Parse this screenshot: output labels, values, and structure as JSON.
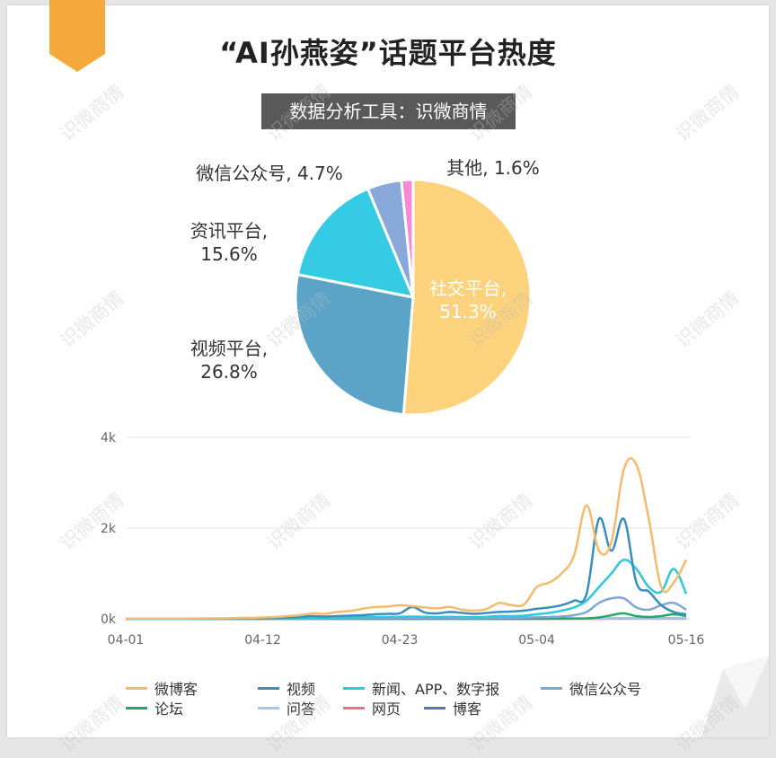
{
  "header": {
    "title": "“AI孙燕姿”话题平台热度",
    "subtitle": "数据分析工具：识微商情"
  },
  "watermark": "识微商情",
  "colors": {
    "ribbon": "#f5a93a",
    "background": "#ffffff"
  },
  "chart_data": [
    {
      "type": "pie",
      "slices": [
        {
          "name": "社交平台",
          "value": 51.3,
          "color": "#fdd27c",
          "label_line1": "社交平台,",
          "label_line2": "51.3%"
        },
        {
          "name": "视频平台",
          "value": 26.8,
          "color": "#5ba4c8",
          "label_line1": "视频平台,",
          "label_line2": "26.8%"
        },
        {
          "name": "资讯平台",
          "value": 15.6,
          "color": "#35cbe4",
          "label_line1": "资讯平台,",
          "label_line2": "15.6%"
        },
        {
          "name": "微信公众号",
          "value": 4.7,
          "color": "#87a8d8",
          "label_line1": "微信公众号, 4.7%",
          "label_line2": ""
        },
        {
          "name": "其他",
          "value": 1.6,
          "color": "#f589d5",
          "label_line1": "其他, 1.6%",
          "label_line2": ""
        }
      ]
    },
    {
      "type": "line",
      "y_ticks": [
        0,
        2000,
        4000
      ],
      "y_tick_labels": [
        "0k",
        "2k",
        "4k"
      ],
      "ylim": [
        0,
        4000
      ],
      "grid": true,
      "legend_position": "bottom",
      "x_tick_labels": [
        "04-01",
        "04-12",
        "04-23",
        "05-04",
        "05-16"
      ],
      "x_start": "2023-04-01",
      "x": [
        "04-01",
        "04-02",
        "04-03",
        "04-04",
        "04-05",
        "04-06",
        "04-07",
        "04-08",
        "04-09",
        "04-10",
        "04-11",
        "04-12",
        "04-13",
        "04-14",
        "04-15",
        "04-16",
        "04-17",
        "04-18",
        "04-19",
        "04-20",
        "04-21",
        "04-22",
        "04-23",
        "04-24",
        "04-25",
        "04-26",
        "04-27",
        "04-28",
        "04-29",
        "04-30",
        "05-01",
        "05-02",
        "05-03",
        "05-04",
        "05-05",
        "05-06",
        "05-07",
        "05-08",
        "05-09",
        "05-10",
        "05-11",
        "05-12",
        "05-13",
        "05-14",
        "05-15",
        "05-16"
      ],
      "series": [
        {
          "name": "微博客",
          "color": "#f4bb6e",
          "values": [
            5,
            5,
            5,
            5,
            5,
            5,
            8,
            10,
            12,
            18,
            20,
            30,
            40,
            60,
            80,
            120,
            110,
            150,
            170,
            220,
            260,
            270,
            300,
            280,
            250,
            230,
            260,
            200,
            180,
            220,
            350,
            300,
            320,
            700,
            800,
            1000,
            1400,
            2500,
            1500,
            1700,
            3300,
            3400,
            2200,
            700,
            800,
            1300
          ]
        },
        {
          "name": "视频",
          "color": "#3b8dbc",
          "values": [
            5,
            5,
            5,
            5,
            5,
            5,
            5,
            5,
            5,
            8,
            10,
            15,
            20,
            30,
            40,
            60,
            50,
            60,
            70,
            80,
            100,
            110,
            120,
            260,
            140,
            120,
            150,
            130,
            110,
            130,
            150,
            160,
            180,
            220,
            250,
            300,
            400,
            550,
            2200,
            1500,
            2200,
            800,
            600,
            300,
            150,
            100
          ]
        },
        {
          "name": "新闻、APP、数字报",
          "color": "#2ec7de",
          "values": [
            2,
            2,
            2,
            2,
            2,
            2,
            2,
            2,
            2,
            3,
            3,
            5,
            8,
            10,
            15,
            20,
            20,
            25,
            30,
            35,
            40,
            40,
            45,
            50,
            45,
            40,
            45,
            40,
            35,
            45,
            60,
            60,
            70,
            100,
            130,
            180,
            250,
            400,
            700,
            1000,
            1300,
            1100,
            700,
            600,
            1100,
            550
          ]
        },
        {
          "name": "微信公众号",
          "color": "#82a4d6",
          "values": [
            0,
            0,
            0,
            0,
            0,
            0,
            0,
            0,
            0,
            0,
            0,
            2,
            3,
            5,
            5,
            8,
            8,
            10,
            10,
            12,
            15,
            15,
            15,
            18,
            15,
            15,
            15,
            15,
            12,
            15,
            20,
            20,
            25,
            35,
            40,
            50,
            80,
            150,
            350,
            450,
            450,
            250,
            200,
            300,
            350,
            200
          ]
        },
        {
          "name": "论坛",
          "color": "#24a867",
          "values": [
            0,
            0,
            0,
            0,
            0,
            0,
            0,
            0,
            0,
            0,
            0,
            0,
            0,
            0,
            0,
            0,
            0,
            0,
            0,
            0,
            0,
            0,
            0,
            0,
            0,
            0,
            0,
            0,
            0,
            0,
            0,
            0,
            0,
            2,
            3,
            5,
            8,
            10,
            30,
            80,
            120,
            60,
            40,
            60,
            100,
            60
          ]
        },
        {
          "name": "问答",
          "color": "#a3c6e8",
          "values": [
            0,
            0,
            0,
            0,
            0,
            0,
            0,
            0,
            0,
            0,
            0,
            0,
            0,
            0,
            0,
            0,
            0,
            0,
            0,
            0,
            0,
            0,
            0,
            0,
            0,
            0,
            0,
            0,
            0,
            0,
            0,
            0,
            0,
            0,
            0,
            0,
            0,
            0,
            5,
            10,
            15,
            10,
            8,
            10,
            12,
            8
          ]
        },
        {
          "name": "网页",
          "color": "#ef6e86",
          "values": [
            0,
            0,
            0,
            0,
            0,
            0,
            0,
            0,
            0,
            0,
            0,
            0,
            0,
            0,
            0,
            0,
            0,
            0,
            0,
            0,
            0,
            0,
            0,
            0,
            0,
            0,
            0,
            0,
            0,
            0,
            0,
            0,
            0,
            0,
            0,
            0,
            0,
            0,
            0,
            2,
            3,
            2,
            2,
            2,
            2,
            2
          ]
        },
        {
          "name": "博客",
          "color": "#5275c8",
          "values": [
            0,
            0,
            0,
            0,
            0,
            0,
            0,
            0,
            0,
            0,
            0,
            0,
            0,
            0,
            0,
            0,
            0,
            0,
            0,
            0,
            0,
            0,
            0,
            0,
            0,
            0,
            0,
            0,
            0,
            0,
            0,
            0,
            0,
            2,
            2,
            3,
            4,
            5,
            8,
            10,
            12,
            10,
            8,
            10,
            12,
            8
          ]
        }
      ]
    }
  ]
}
